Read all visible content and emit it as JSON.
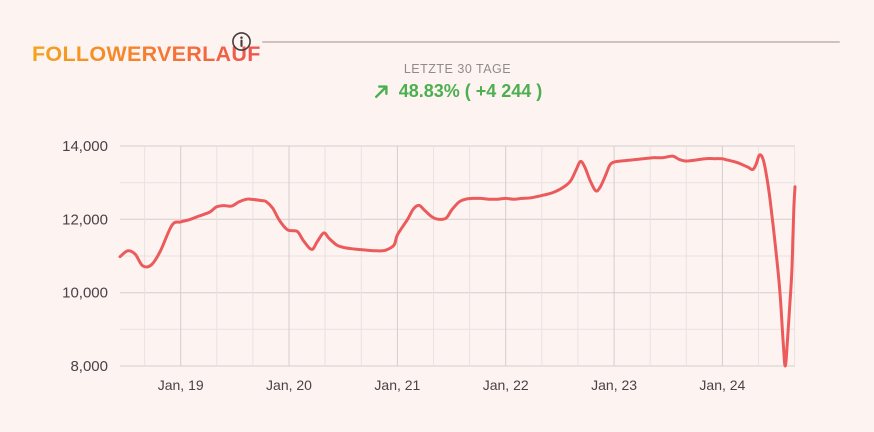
{
  "header": {
    "title": "FOLLOWERVERLAUF"
  },
  "icons": {
    "info": "info-circle-icon",
    "trend": "arrow-up-right-icon"
  },
  "stats": {
    "period_label": "LETZTE 30 TAGE",
    "trend_value": "48.83% ( +4 244 )"
  },
  "colors": {
    "background": "#fdf4f2",
    "accent_line": "#ec5b5c",
    "positive": "#4caf50",
    "title_gradient_start": "#f3a41e",
    "title_gradient_end": "#ef5350",
    "grid_major": "#d5cdcd",
    "grid_minor": "#e8e2e2",
    "axis_label": "#4b4147",
    "muted_label": "#908a8a",
    "divider": "#c9b6b6",
    "info_icon": "#473c3c"
  },
  "chart_data": {
    "type": "line",
    "title": "FOLLOWERVERLAUF",
    "xlabel": "",
    "ylabel": "",
    "grid": true,
    "legend": false,
    "x_range": [
      2018.44,
      2024.67
    ],
    "y_range": [
      8000,
      14000
    ],
    "y_minor_step": 1000,
    "x_minor_step": 0.33333,
    "x_grid_start": 2018.6667,
    "y_ticks": [
      {
        "value": 8000,
        "label": "8,000"
      },
      {
        "value": 10000,
        "label": "10,000"
      },
      {
        "value": 12000,
        "label": "12,000"
      },
      {
        "value": 14000,
        "label": "14,000"
      }
    ],
    "x_ticks": [
      {
        "value": 2019,
        "label": "Jan, 19"
      },
      {
        "value": 2020,
        "label": "Jan, 20"
      },
      {
        "value": 2021,
        "label": "Jan, 21"
      },
      {
        "value": 2022,
        "label": "Jan, 22"
      },
      {
        "value": 2023,
        "label": "Jan, 23"
      },
      {
        "value": 2024,
        "label": "Jan, 24"
      }
    ],
    "series": [
      {
        "name": "Follower",
        "points": [
          [
            2018.44,
            10980
          ],
          [
            2018.51,
            11140
          ],
          [
            2018.58,
            11050
          ],
          [
            2018.65,
            10730
          ],
          [
            2018.73,
            10760
          ],
          [
            2018.81,
            11120
          ],
          [
            2018.92,
            11840
          ],
          [
            2019.0,
            11930
          ],
          [
            2019.08,
            11990
          ],
          [
            2019.17,
            12090
          ],
          [
            2019.27,
            12200
          ],
          [
            2019.33,
            12340
          ],
          [
            2019.4,
            12375
          ],
          [
            2019.47,
            12360
          ],
          [
            2019.54,
            12480
          ],
          [
            2019.61,
            12550
          ],
          [
            2019.66,
            12545
          ],
          [
            2019.75,
            12510
          ],
          [
            2019.79,
            12480
          ],
          [
            2019.85,
            12300
          ],
          [
            2019.91,
            11980
          ],
          [
            2019.98,
            11725
          ],
          [
            2020.03,
            11690
          ],
          [
            2020.08,
            11660
          ],
          [
            2020.14,
            11390
          ],
          [
            2020.21,
            11180
          ],
          [
            2020.26,
            11390
          ],
          [
            2020.32,
            11630
          ],
          [
            2020.37,
            11480
          ],
          [
            2020.44,
            11300
          ],
          [
            2020.51,
            11230
          ],
          [
            2020.6,
            11190
          ],
          [
            2020.69,
            11165
          ],
          [
            2020.78,
            11145
          ],
          [
            2020.85,
            11140
          ],
          [
            2020.9,
            11165
          ],
          [
            2020.97,
            11300
          ],
          [
            2021.0,
            11575
          ],
          [
            2021.09,
            11980
          ],
          [
            2021.15,
            12290
          ],
          [
            2021.2,
            12380
          ],
          [
            2021.25,
            12250
          ],
          [
            2021.32,
            12065
          ],
          [
            2021.38,
            12000
          ],
          [
            2021.45,
            12035
          ],
          [
            2021.5,
            12250
          ],
          [
            2021.57,
            12475
          ],
          [
            2021.63,
            12550
          ],
          [
            2021.69,
            12570
          ],
          [
            2021.77,
            12570
          ],
          [
            2021.84,
            12550
          ],
          [
            2021.93,
            12550
          ],
          [
            2022.0,
            12570
          ],
          [
            2022.07,
            12550
          ],
          [
            2022.15,
            12570
          ],
          [
            2022.24,
            12590
          ],
          [
            2022.35,
            12660
          ],
          [
            2022.44,
            12735
          ],
          [
            2022.53,
            12870
          ],
          [
            2022.6,
            13055
          ],
          [
            2022.65,
            13350
          ],
          [
            2022.69,
            13580
          ],
          [
            2022.73,
            13425
          ],
          [
            2022.78,
            13055
          ],
          [
            2022.83,
            12780
          ],
          [
            2022.87,
            12870
          ],
          [
            2022.92,
            13190
          ],
          [
            2022.96,
            13470
          ],
          [
            2023.0,
            13560
          ],
          [
            2023.09,
            13600
          ],
          [
            2023.18,
            13625
          ],
          [
            2023.27,
            13655
          ],
          [
            2023.36,
            13680
          ],
          [
            2023.45,
            13680
          ],
          [
            2023.54,
            13725
          ],
          [
            2023.6,
            13635
          ],
          [
            2023.66,
            13590
          ],
          [
            2023.75,
            13615
          ],
          [
            2023.84,
            13655
          ],
          [
            2023.93,
            13655
          ],
          [
            2024.0,
            13650
          ],
          [
            2024.05,
            13615
          ],
          [
            2024.14,
            13545
          ],
          [
            2024.23,
            13430
          ],
          [
            2024.28,
            13360
          ],
          [
            2024.31,
            13495
          ],
          [
            2024.34,
            13745
          ],
          [
            2024.37,
            13680
          ],
          [
            2024.4,
            13315
          ],
          [
            2024.44,
            12530
          ],
          [
            2024.49,
            11245
          ],
          [
            2024.53,
            10050
          ],
          [
            2024.56,
            8680
          ],
          [
            2024.58,
            8000
          ],
          [
            2024.6,
            8680
          ],
          [
            2024.62,
            9590
          ],
          [
            2024.64,
            10510
          ],
          [
            2024.65,
            11430
          ],
          [
            2024.66,
            12345
          ],
          [
            2024.67,
            12890
          ]
        ]
      }
    ]
  }
}
